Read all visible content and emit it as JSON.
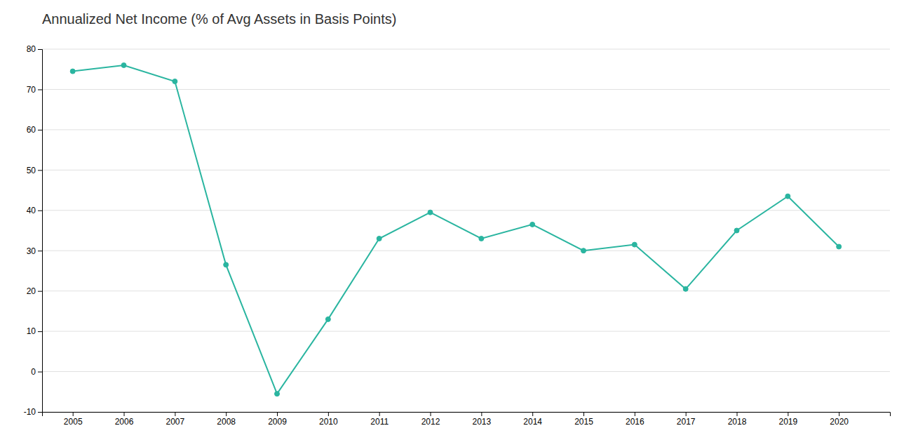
{
  "chart_data": {
    "type": "line",
    "title": "Annualized Net Income (% of Avg Assets in Basis Points)",
    "x": [
      2005,
      2006,
      2007,
      2008,
      2009,
      2010,
      2011,
      2012,
      2013,
      2014,
      2015,
      2016,
      2017,
      2018,
      2019,
      2020
    ],
    "values": [
      74.5,
      76.0,
      72.0,
      26.5,
      -5.5,
      13.0,
      33.0,
      39.5,
      33.0,
      36.5,
      30.0,
      31.5,
      20.5,
      35.0,
      43.5,
      31.0
    ],
    "color": "#2ab5a0",
    "marker": "circle",
    "xlim": [
      2004.4,
      2021.0
    ],
    "xticks": [
      2005,
      2006,
      2007,
      2008,
      2009,
      2010,
      2011,
      2012,
      2013,
      2014,
      2015,
      2016,
      2017,
      2018,
      2019,
      2020
    ],
    "ylim": [
      -10,
      80
    ],
    "yticks": [
      -10,
      0,
      10,
      20,
      30,
      40,
      50,
      60,
      70,
      80
    ],
    "grid": true
  }
}
